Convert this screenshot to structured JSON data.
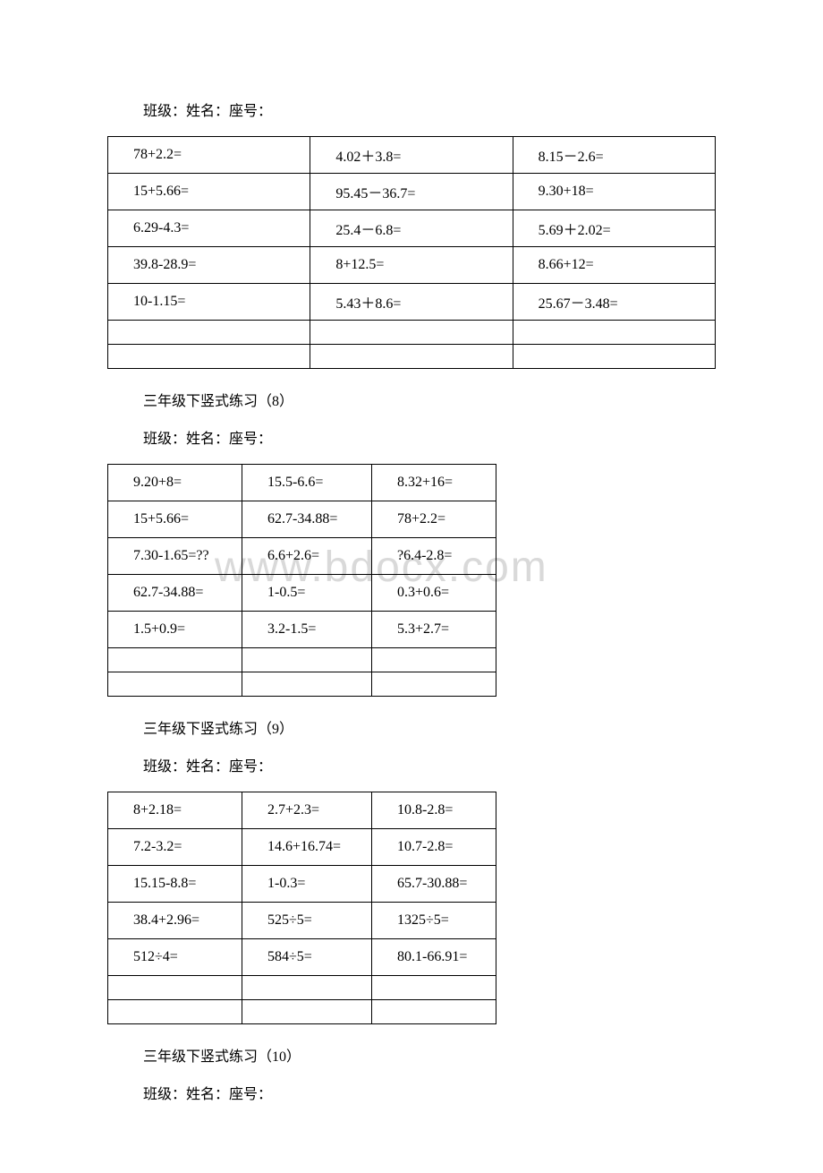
{
  "header1": "班级：姓名：座号：",
  "table1": {
    "rows": [
      [
        "78+2.2=",
        "4.02＋3.8=",
        "8.15－2.6="
      ],
      [
        "15+5.66=",
        "95.45－36.7=",
        "9.30+18="
      ],
      [
        "6.29-4.3=",
        "25.4－6.8=",
        "5.69＋2.02="
      ],
      [
        "39.8-28.9=",
        "8+12.5=",
        "8.66+12="
      ],
      [
        "10-1.15=",
        "5.43＋8.6=",
        "25.67－3.48="
      ],
      [
        "",
        "",
        ""
      ],
      [
        "",
        "",
        ""
      ]
    ]
  },
  "title2": "三年级下竖式练习（8）",
  "header2": "班级：姓名：座号：",
  "table2": {
    "rows": [
      [
        "9.20+8=",
        "15.5-6.6=",
        "8.32+16="
      ],
      [
        "15+5.66=",
        "62.7-34.88=",
        "78+2.2="
      ],
      [
        "7.30-1.65=??",
        "6.6+2.6=",
        "?6.4-2.8="
      ],
      [
        "62.7-34.88=",
        "1-0.5=",
        "0.3+0.6="
      ],
      [
        "1.5+0.9=",
        "3.2-1.5=",
        "5.3+2.7="
      ],
      [
        "",
        "",
        ""
      ],
      [
        "",
        "",
        ""
      ]
    ]
  },
  "title3": "三年级下竖式练习（9）",
  "header3": "班级：姓名：座号：",
  "table3": {
    "rows": [
      [
        "8+2.18=",
        "2.7+2.3=",
        "10.8-2.8="
      ],
      [
        "7.2-3.2=",
        "14.6+16.74=",
        "10.7-2.8="
      ],
      [
        "15.15-8.8=",
        "1-0.3=",
        "65.7-30.88="
      ],
      [
        "38.4+2.96=",
        "525÷5=",
        "1325÷5="
      ],
      [
        "512÷4=",
        "584÷5=",
        "80.1-66.91="
      ],
      [
        "",
        "",
        ""
      ],
      [
        "",
        "",
        ""
      ]
    ]
  },
  "title4": "三年级下竖式练习（10）",
  "header4": "班级：姓名：座号：",
  "watermark": "www.bdocx.com"
}
